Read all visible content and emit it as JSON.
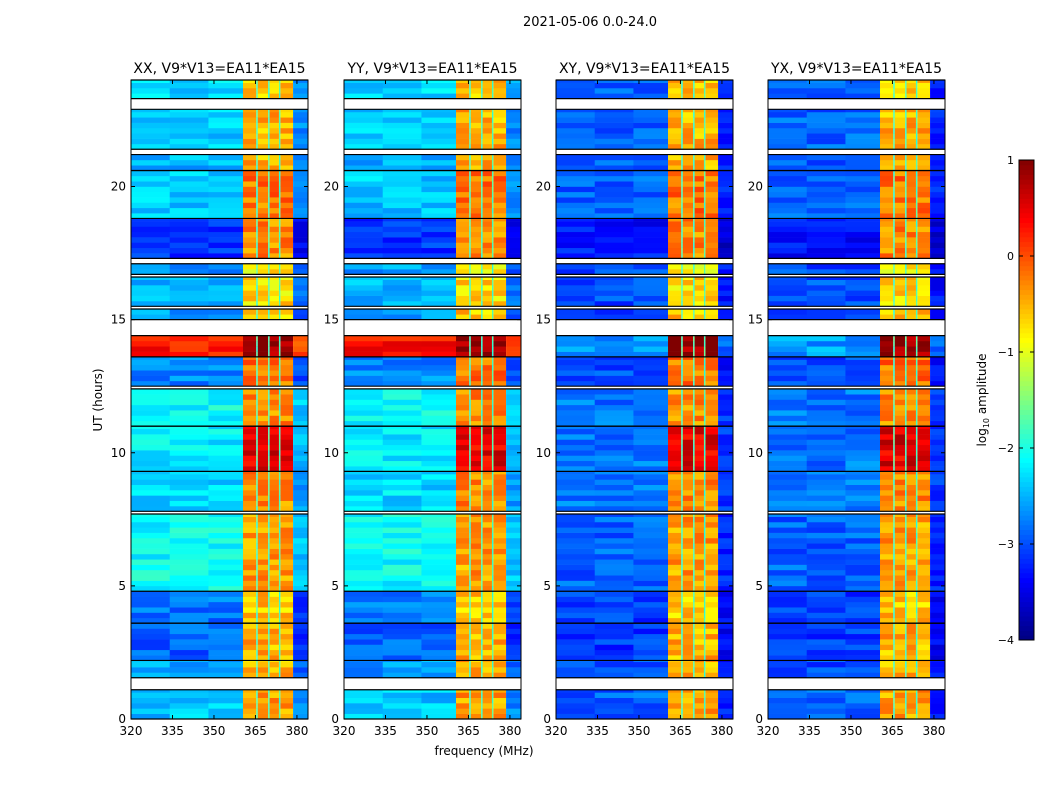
{
  "chart_data": {
    "type": "heatmap",
    "title": "2021-05-06 0.0-24.0",
    "xlabel": "frequency (MHz)",
    "ylabel": "UT (hours)",
    "xlim": [
      320,
      384
    ],
    "ylim": [
      0,
      24
    ],
    "xticks": [
      "320",
      "335",
      "350",
      "365",
      "380"
    ],
    "xtick_values": [
      320,
      335,
      350,
      365,
      380
    ],
    "yticks": [
      "0",
      "5",
      "10",
      "15",
      "20"
    ],
    "ytick_values": [
      0,
      5,
      10,
      15,
      20
    ],
    "colorbar": {
      "label_prefix": "log",
      "label_sub": "10",
      "label_suffix": " amplitude",
      "range": [
        -4,
        1
      ],
      "ticks": [
        "1",
        "0",
        "−1",
        "−2",
        "−3",
        "−4"
      ],
      "tick_values": [
        1,
        0,
        -1,
        -2,
        -3,
        -4
      ],
      "colormap": "jet"
    },
    "panels": [
      {
        "title": "XX, V9*V13=EA11*EA15",
        "kind": "parallel"
      },
      {
        "title": "YY, V9*V13=EA11*EA15",
        "kind": "parallel"
      },
      {
        "title": "XY, V9*V13=EA11*EA15",
        "kind": "cross"
      },
      {
        "title": "YX, V9*V13=EA11*EA15",
        "kind": "cross"
      }
    ],
    "rfi_band_mhz": [
      [
        360.5,
        365.3
      ],
      [
        365.8,
        369.6
      ],
      [
        370.1,
        373.5
      ],
      [
        374.0,
        378.6
      ]
    ],
    "segments": [
      {
        "t0": 0.0,
        "t1": 1.1,
        "bg_parallel": -2.4,
        "bg_cross": -2.9,
        "band": -0.4
      },
      {
        "t0": 1.55,
        "t1": 2.2,
        "bg_parallel": -2.6,
        "bg_cross": -3.0,
        "band": -0.5
      },
      {
        "t0": 2.2,
        "t1": 3.6,
        "bg_parallel": -2.9,
        "bg_cross": -3.1,
        "band": -0.5
      },
      {
        "t0": 3.6,
        "t1": 4.8,
        "bg_parallel": -2.8,
        "bg_cross": -3.1,
        "band": -0.6
      },
      {
        "t0": 4.8,
        "t1": 7.7,
        "bg_parallel": -2.1,
        "bg_cross": -2.9,
        "band": -0.4
      },
      {
        "t0": 7.8,
        "t1": 9.3,
        "bg_parallel": -2.3,
        "bg_cross": -2.8,
        "band": -0.3
      },
      {
        "t0": 9.3,
        "t1": 11.0,
        "bg_parallel": -2.2,
        "bg_cross": -2.8,
        "band": 0.5
      },
      {
        "t0": 11.0,
        "t1": 12.4,
        "bg_parallel": -2.1,
        "bg_cross": -2.8,
        "band": -0.3
      },
      {
        "t0": 12.5,
        "t1": 13.6,
        "bg_parallel": -2.7,
        "bg_cross": -3.0,
        "band": -0.2
      },
      {
        "t0": 13.6,
        "t1": 14.4,
        "bg_parallel": 0.3,
        "bg_cross": -2.6,
        "band": 0.9
      },
      {
        "t0": 15.0,
        "t1": 15.4,
        "bg_parallel": -2.6,
        "bg_cross": -3.0,
        "band": -0.6
      },
      {
        "t0": 15.5,
        "t1": 16.6,
        "bg_parallel": -2.5,
        "bg_cross": -3.0,
        "band": -0.7
      },
      {
        "t0": 16.7,
        "t1": 17.1,
        "bg_parallel": -2.6,
        "bg_cross": -3.0,
        "band": -0.8
      },
      {
        "t0": 17.3,
        "t1": 18.8,
        "bg_parallel": -3.1,
        "bg_cross": -3.3,
        "band": -0.3
      },
      {
        "t0": 18.8,
        "t1": 20.6,
        "bg_parallel": -2.4,
        "bg_cross": -2.9,
        "band": -0.2
      },
      {
        "t0": 20.6,
        "t1": 21.2,
        "bg_parallel": -2.5,
        "bg_cross": -2.9,
        "band": -0.5
      },
      {
        "t0": 21.4,
        "t1": 22.9,
        "bg_parallel": -2.4,
        "bg_cross": -2.9,
        "band": -0.5
      },
      {
        "t0": 23.3,
        "t1": 24.0,
        "bg_parallel": -2.3,
        "bg_cross": -2.9,
        "band": -0.6
      }
    ]
  }
}
